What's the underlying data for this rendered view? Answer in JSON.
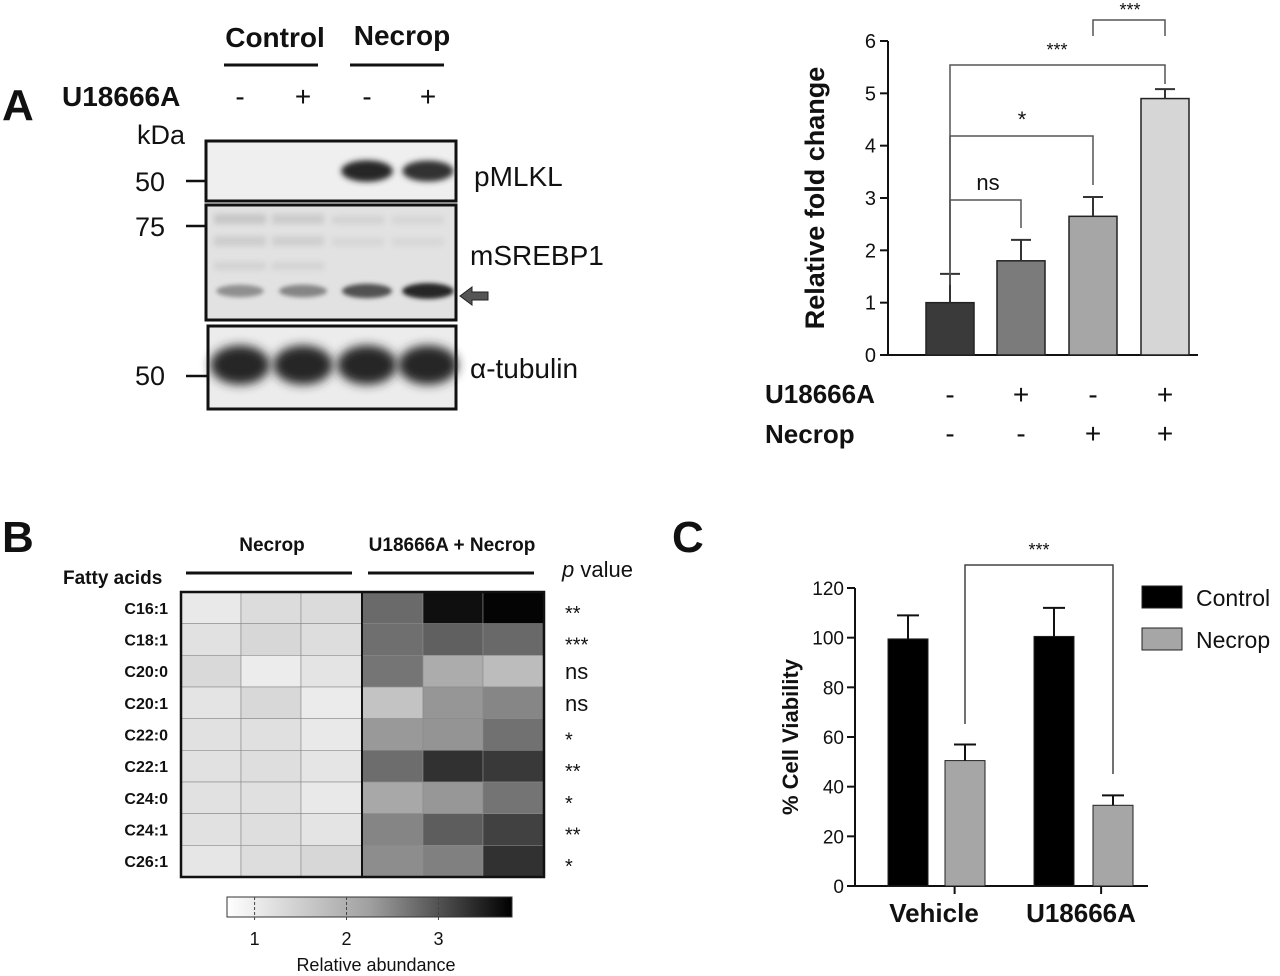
{
  "panels": {
    "a": "A",
    "b": "B",
    "c": "C"
  },
  "western_blot": {
    "group_labels": [
      "Control",
      "Necrop"
    ],
    "treatment_label": "U18666A",
    "lane_signs": [
      "-",
      "+",
      "-",
      "+"
    ],
    "kda_label": "kDa",
    "markers": [
      "50",
      "75",
      "50"
    ],
    "blots": [
      {
        "name": "pMLKL",
        "band_intensity": [
          0,
          0,
          0.95,
          0.9
        ]
      },
      {
        "name": "mSREBP1",
        "band_intensity": [
          0.45,
          0.5,
          0.75,
          0.95
        ]
      },
      {
        "name": "α-tubulin",
        "band_intensity": [
          0.95,
          0.95,
          0.95,
          0.95
        ]
      }
    ],
    "arrow_color": "#555555"
  },
  "chart_data": [
    {
      "type": "bar",
      "id": "fold_change",
      "ylabel": "Relative fold change",
      "ylim": [
        0,
        6
      ],
      "yticks": [
        "0",
        "1",
        "2",
        "3",
        "4",
        "5",
        "6"
      ],
      "values": [
        1.0,
        1.8,
        2.65,
        4.9
      ],
      "errors": [
        0.55,
        0.4,
        0.37,
        0.18
      ],
      "colors": [
        "#3a3a3a",
        "#7b7b7b",
        "#a6a6a6",
        "#d6d6d6"
      ],
      "row_labels": [
        "U18666A",
        "Necrop"
      ],
      "conditions": [
        [
          "-",
          "+",
          "-",
          "+"
        ],
        [
          "-",
          "-",
          "+",
          "+"
        ]
      ],
      "significance": [
        "ns",
        "*",
        "***",
        "***"
      ]
    },
    {
      "type": "heatmap",
      "id": "fatty_acids",
      "row_header": "Fatty acids",
      "group_labels": [
        "Necrop",
        "U18666A + Necrop"
      ],
      "pvalue_label_italic": "p",
      "pvalue_label_rest": " value",
      "rows": [
        "C16:1",
        "C18:1",
        "C20:0",
        "C20:1",
        "C22:0",
        "C22:1",
        "C24:0",
        "C24:1",
        "C26:1"
      ],
      "pvalues": [
        "**",
        "***",
        "ns",
        "ns",
        "*",
        "**",
        "*",
        "**",
        "*"
      ],
      "values": [
        [
          0.97,
          1.13,
          1.14,
          2.51,
          3.62,
          3.75
        ],
        [
          1.07,
          1.19,
          1.11,
          2.45,
          2.63,
          2.52
        ],
        [
          1.16,
          0.93,
          1.03,
          2.38,
          1.71,
          1.51
        ],
        [
          1.03,
          1.17,
          0.94,
          1.43,
          1.98,
          2.17
        ],
        [
          1.07,
          1.08,
          0.97,
          1.94,
          2.0,
          2.43
        ],
        [
          1.07,
          1.1,
          1.01,
          2.47,
          3.21,
          3.11
        ],
        [
          1.06,
          1.08,
          0.97,
          1.76,
          1.96,
          2.39
        ],
        [
          1.06,
          1.1,
          1.03,
          2.18,
          2.67,
          3.01
        ],
        [
          1.0,
          1.11,
          1.19,
          2.08,
          2.24,
          3.2
        ]
      ],
      "colorbar": {
        "label": "Relative abundance",
        "ticks": [
          "1",
          "2",
          "3"
        ],
        "range": [
          0.7,
          3.8
        ]
      }
    },
    {
      "type": "bar",
      "id": "cell_viability",
      "ylabel": "% Cell Viability",
      "ylim": [
        0,
        120
      ],
      "yticks": [
        "0",
        "20",
        "40",
        "60",
        "80",
        "100",
        "120"
      ],
      "categories": [
        "Vehicle",
        "U18666A"
      ],
      "series": [
        {
          "name": "Control",
          "color": "#000000",
          "values": [
            99.5,
            100.5
          ],
          "errors": [
            9.5,
            11.5
          ]
        },
        {
          "name": "Necrop",
          "color": "#a6a6a6",
          "values": [
            50.5,
            32.5
          ],
          "errors": [
            6.5,
            4.0
          ]
        }
      ],
      "significance": "***"
    }
  ]
}
